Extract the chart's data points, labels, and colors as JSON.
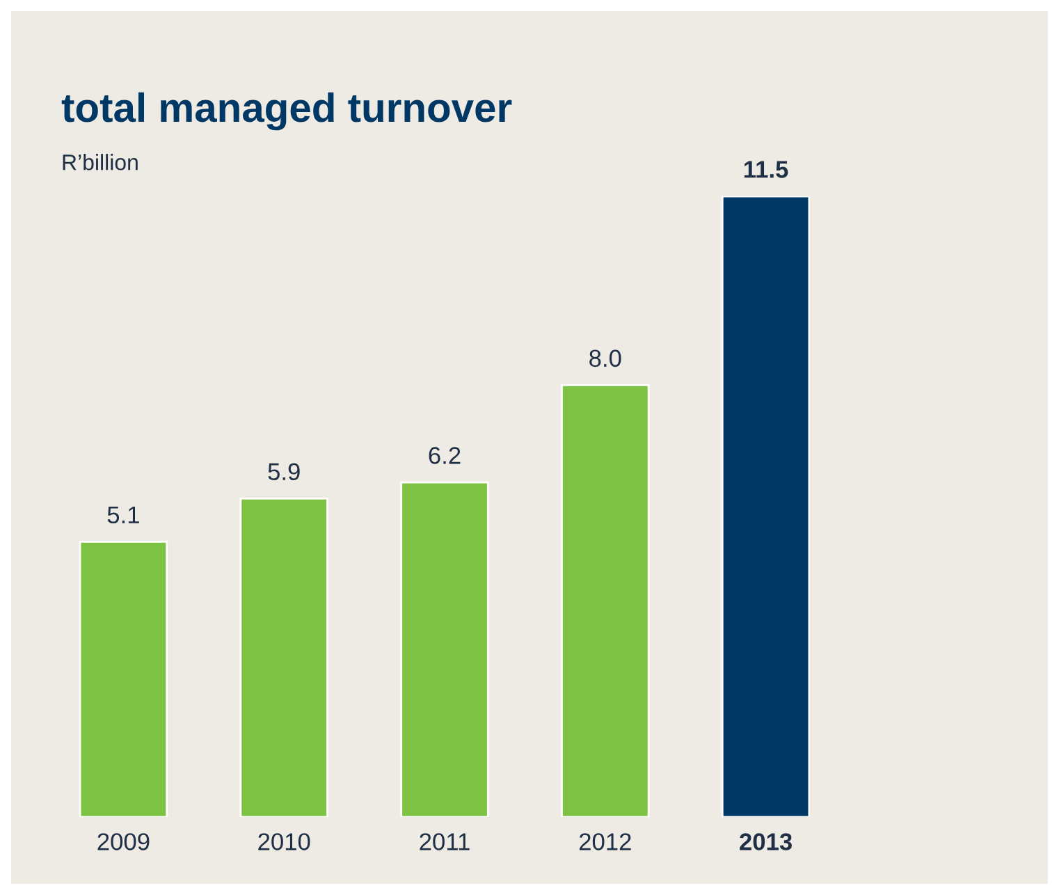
{
  "chart_data": {
    "type": "bar",
    "title": "total managed turnover",
    "subtitle": "R’billion",
    "categories": [
      "2009",
      "2010",
      "2011",
      "2012",
      "2013"
    ],
    "values": [
      5.1,
      5.9,
      6.2,
      8.0,
      11.5
    ],
    "colors": [
      "#7dc242",
      "#7dc242",
      "#7dc242",
      "#7dc242",
      "#003865"
    ],
    "value_labels": [
      "5.1",
      "5.9",
      "6.2",
      "8.0",
      "11.5"
    ]
  }
}
